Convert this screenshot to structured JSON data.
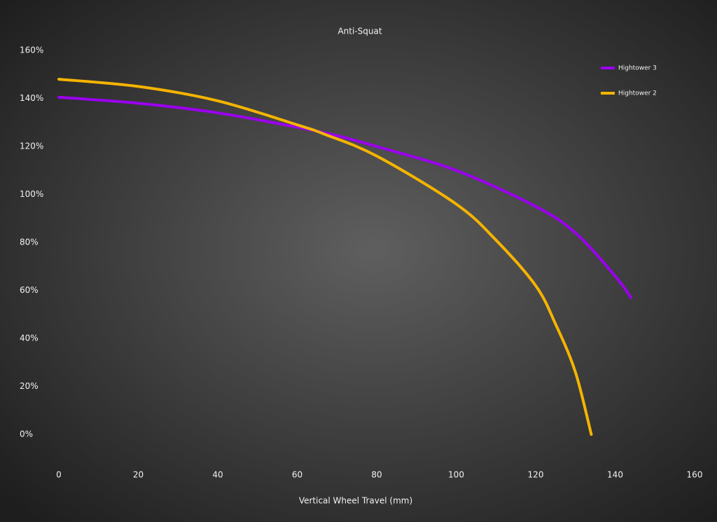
{
  "chart_data": {
    "type": "line",
    "title": "Anti-Squat",
    "x_label": "Vertical Wheel Travel (mm)",
    "xlim": [
      0,
      160
    ],
    "xticks": [
      0,
      20,
      40,
      60,
      80,
      100,
      120,
      140,
      160
    ],
    "ylim": [
      0,
      160
    ],
    "yticks": [
      {
        "value": 0,
        "label": "0%"
      },
      {
        "value": 20,
        "label": "20%"
      },
      {
        "value": 40,
        "label": "40%"
      },
      {
        "value": 60,
        "label": "60%"
      },
      {
        "value": 80,
        "label": "80%"
      },
      {
        "value": 100,
        "label": "100%"
      },
      {
        "value": 120,
        "label": "120%"
      },
      {
        "value": 140,
        "label": "140%"
      },
      {
        "value": 160,
        "label": "160%"
      }
    ],
    "grid": false,
    "legend": "top-right",
    "series": [
      {
        "name": "Hightower 3",
        "color": "#9b00ee",
        "x": [
          0,
          20,
          40,
          60,
          70,
          80,
          100,
          120,
          130,
          140,
          144
        ],
        "values": [
          140.5,
          138,
          134,
          128,
          124.5,
          120,
          110,
          95,
          84,
          66,
          57
        ]
      },
      {
        "name": "Hightower 2",
        "color": "#f5b400",
        "x": [
          0,
          20,
          40,
          60,
          67,
          80,
          100,
          110,
          120,
          125,
          130,
          134
        ],
        "values": [
          148,
          145,
          139,
          129,
          125,
          116,
          96,
          81,
          62,
          46,
          26,
          0
        ]
      }
    ]
  }
}
